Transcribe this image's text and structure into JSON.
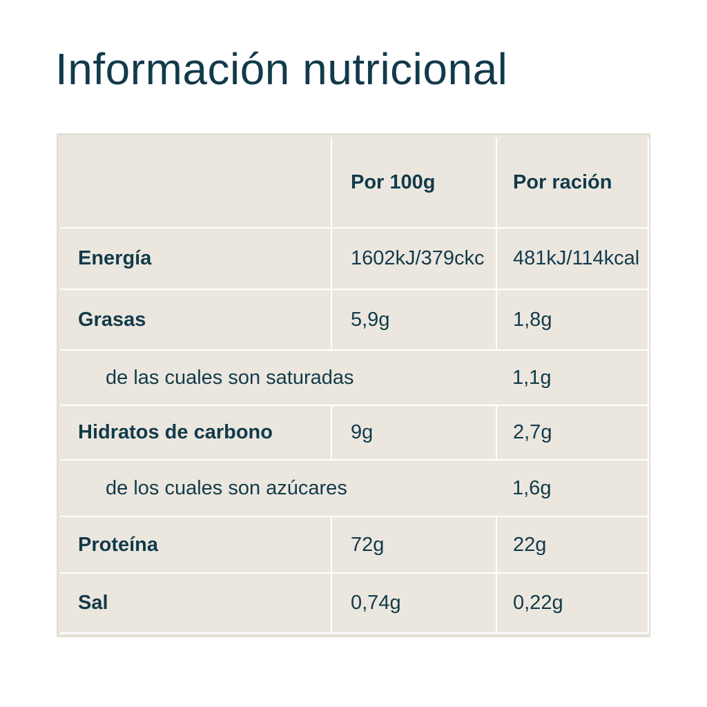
{
  "title": "Información nutricional",
  "table": {
    "headers": [
      "",
      "Por 100g",
      "Por ración"
    ],
    "rows": [
      {
        "label": "Energía",
        "per100": "1602kJ/379ckc",
        "perServing": "481kJ/114kcal",
        "bold": true
      },
      {
        "label": "Grasas",
        "per100": "5,9g",
        "perServing": "1,8g",
        "bold": true
      },
      {
        "label": "de las cuales son saturadas",
        "per100": "",
        "perServing": "1,1g",
        "bold": false
      },
      {
        "label": "Hidratos de carbono",
        "per100": "9g",
        "perServing": "2,7g",
        "bold": true
      },
      {
        "label": "de los cuales son azúcares",
        "per100": "",
        "perServing": "1,6g",
        "bold": false
      },
      {
        "label": "Proteína",
        "per100": "72g",
        "perServing": "22g",
        "bold": true
      },
      {
        "label": "Sal",
        "per100": "0,74g",
        "perServing": "0,22g",
        "bold": true
      }
    ]
  },
  "colors": {
    "text": "#123a4a",
    "table_background": "#ebe7df",
    "grid_lines": "#ffffff"
  }
}
